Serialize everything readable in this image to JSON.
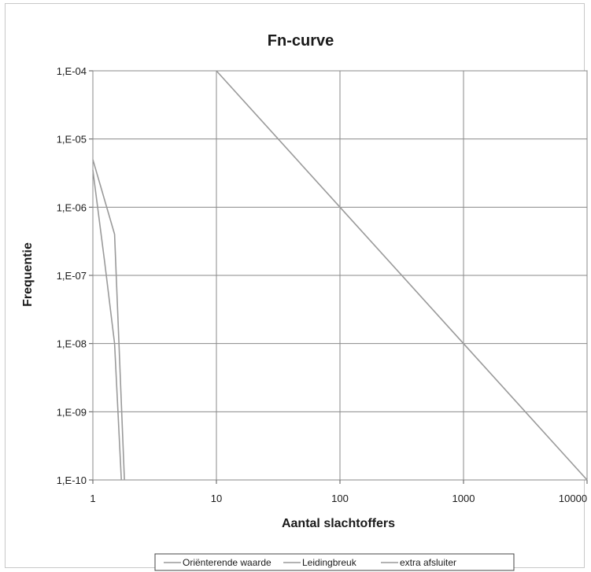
{
  "chart_data": {
    "type": "line",
    "title": "Fn-curve",
    "xlabel": "Aantal slachtoffers",
    "ylabel": "Frequentie",
    "x_scale": "log",
    "y_scale": "log",
    "xlim": [
      1,
      10000
    ],
    "ylim": [
      1e-10,
      0.0001
    ],
    "grid": true,
    "legend_position": "bottom",
    "x_ticks": [
      "1",
      "10",
      "100",
      "1000",
      "10000"
    ],
    "y_ticks": [
      "1,E-10",
      "1,E-09",
      "1,E-08",
      "1,E-07",
      "1,E-06",
      "1,E-05",
      "1,E-04"
    ],
    "series": [
      {
        "name": "Oriënterende waarde",
        "color": "#9a9a9a",
        "x": [
          10,
          100,
          1000,
          10000
        ],
        "y": [
          0.0001,
          1e-06,
          1e-08,
          1e-10
        ]
      },
      {
        "name": "Leidingbreuk",
        "color": "#9a9a9a",
        "x": [
          1,
          1.5,
          1.8
        ],
        "y": [
          5e-06,
          4e-07,
          1e-10
        ]
      },
      {
        "name": "extra afsluiter",
        "color": "#9a9a9a",
        "x": [
          1,
          1.25,
          1.5,
          1.7
        ],
        "y": [
          3.5e-06,
          1.5e-07,
          1e-08,
          1e-10
        ]
      }
    ]
  }
}
